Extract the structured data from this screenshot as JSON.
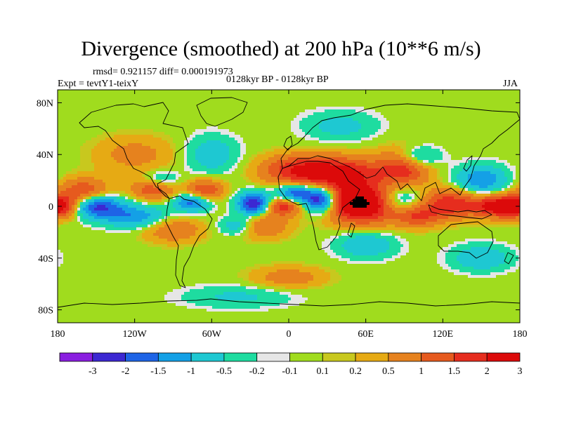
{
  "title": "Divergence (smoothed) at 200 hPa (10**6 m/s)",
  "stats_line": "rmsd= 0.921157 diff= 0.000191973",
  "experiment_line": "Expt = tevtY1-teixY",
  "period_line": "0128kyr BP - 0128kyr BP",
  "season_label": "JJA",
  "colors": {
    "bins": [
      "#8a1ee0",
      "#3c28d2",
      "#1e64e6",
      "#14a0e6",
      "#1ec8d2",
      "#1edca0",
      "#e6e6e6",
      "#a0dc1e",
      "#c8c81e",
      "#e6aa14",
      "#e6821e",
      "#e65a1e",
      "#e62d1e",
      "#dc0a0a"
    ],
    "coast": "#000000"
  },
  "chart_data": {
    "type": "heatmap",
    "title": "Divergence (smoothed) at 200 hPa (10**6 m/s)",
    "variable": "Divergence (smoothed) at 200 hPa",
    "units": "10**6 m/s",
    "rmsd": 0.921157,
    "diff": 0.000191973,
    "experiment": "tevtY1-teixY",
    "period": "0128kyr BP - 0128kyr BP",
    "season": "JJA",
    "x_ticks": [
      "180",
      "120W",
      "60W",
      "0",
      "60E",
      "120E",
      "180"
    ],
    "x_tick_values": [
      -180,
      -120,
      -60,
      0,
      60,
      120,
      180
    ],
    "y_ticks": [
      "80N",
      "40N",
      "0",
      "40S",
      "80S"
    ],
    "y_tick_values": [
      80,
      40,
      0,
      -40,
      -80
    ],
    "xlim": [
      -180,
      180
    ],
    "ylim": [
      -90,
      90
    ],
    "colorbar_levels": [
      "-3",
      "-2",
      "-1.5",
      "-1",
      "-0.5",
      "-0.2",
      "-0.1",
      "0.1",
      "0.2",
      "0.5",
      "1",
      "1.5",
      "2",
      "3"
    ],
    "colorbar_level_values": [
      -3,
      -2,
      -1.5,
      -1,
      -0.5,
      -0.2,
      -0.1,
      0.1,
      0.2,
      0.5,
      1,
      1.5,
      2,
      3
    ],
    "features": [
      {
        "lon": 58,
        "lat": 2,
        "amp": 3.4,
        "sx": 20,
        "sy": 10
      },
      {
        "lon": 40,
        "lat": 25,
        "amp": 2.2,
        "sx": 22,
        "sy": 9
      },
      {
        "lon": 5,
        "lat": 28,
        "amp": 1.6,
        "sx": 20,
        "sy": 8
      },
      {
        "lon": 90,
        "lat": 30,
        "amp": 1.8,
        "sx": 14,
        "sy": 10
      },
      {
        "lon": 125,
        "lat": 2,
        "amp": 1.9,
        "sx": 16,
        "sy": 8
      },
      {
        "lon": 165,
        "lat": 0,
        "amp": 2.6,
        "sx": 14,
        "sy": 6
      },
      {
        "lon": 100,
        "lat": -8,
        "amp": 1.4,
        "sx": 12,
        "sy": 6
      },
      {
        "lon": -160,
        "lat": 12,
        "amp": 1.4,
        "sx": 14,
        "sy": 7
      },
      {
        "lon": -105,
        "lat": 14,
        "amp": 1.6,
        "sx": 12,
        "sy": 6
      },
      {
        "lon": -65,
        "lat": 12,
        "amp": 1.6,
        "sx": 10,
        "sy": 6
      },
      {
        "lon": -5,
        "lat": 0,
        "amp": 1.8,
        "sx": 10,
        "sy": 5
      },
      {
        "lon": -20,
        "lat": -15,
        "amp": 1.1,
        "sx": 14,
        "sy": 7
      },
      {
        "lon": -90,
        "lat": -18,
        "amp": 1.0,
        "sx": 16,
        "sy": 7
      },
      {
        "lon": 0,
        "lat": -55,
        "amp": 0.8,
        "sx": 20,
        "sy": 6
      },
      {
        "lon": -120,
        "lat": 40,
        "amp": 0.7,
        "sx": 22,
        "sy": 10
      },
      {
        "lon": -175,
        "lat": 0,
        "amp": 1.6,
        "sx": 10,
        "sy": 6
      },
      {
        "lon": 25,
        "lat": 5,
        "amp": -2.8,
        "sx": 9,
        "sy": 7
      },
      {
        "lon": -27,
        "lat": 2,
        "amp": -2.6,
        "sx": 9,
        "sy": 6
      },
      {
        "lon": 5,
        "lat": 10,
        "amp": -2.0,
        "sx": 10,
        "sy": 5
      },
      {
        "lon": -150,
        "lat": 0,
        "amp": -2.2,
        "sx": 14,
        "sy": 6
      },
      {
        "lon": -75,
        "lat": 3,
        "amp": -1.8,
        "sx": 10,
        "sy": 5
      },
      {
        "lon": 85,
        "lat": 5,
        "amp": -1.6,
        "sx": 14,
        "sy": 8
      },
      {
        "lon": 100,
        "lat": 38,
        "amp": -1.3,
        "sx": 12,
        "sy": 6
      },
      {
        "lon": 150,
        "lat": 20,
        "amp": -1.5,
        "sx": 14,
        "sy": 8
      },
      {
        "lon": -120,
        "lat": -8,
        "amp": -1.4,
        "sx": 18,
        "sy": 6
      },
      {
        "lon": -100,
        "lat": 20,
        "amp": -1.1,
        "sx": 10,
        "sy": 5
      },
      {
        "lon": -40,
        "lat": -15,
        "amp": -1.0,
        "sx": 10,
        "sy": 5
      },
      {
        "lon": 60,
        "lat": -30,
        "amp": -1.0,
        "sx": 16,
        "sy": 7
      },
      {
        "lon": 150,
        "lat": -40,
        "amp": -1.0,
        "sx": 16,
        "sy": 7
      },
      {
        "lon": -60,
        "lat": 40,
        "amp": -0.9,
        "sx": 14,
        "sy": 10
      },
      {
        "lon": 40,
        "lat": 62,
        "amp": -0.7,
        "sx": 20,
        "sy": 8
      },
      {
        "lon": -40,
        "lat": -70,
        "amp": -0.6,
        "sx": 30,
        "sy": 6
      }
    ]
  }
}
